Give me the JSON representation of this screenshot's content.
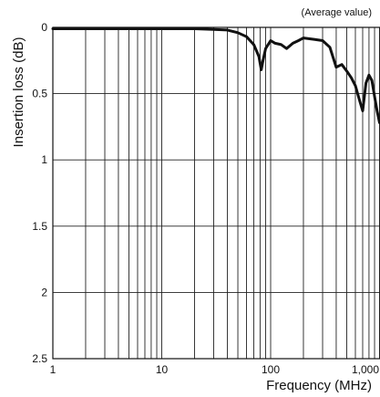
{
  "chart_data": {
    "type": "line",
    "title": "",
    "annotation": "(Average value)",
    "xlabel": "Frequency (MHz)",
    "ylabel": "Insertion loss (dB)",
    "x_scale": "log",
    "xlim": [
      1,
      1000
    ],
    "ylim": [
      0,
      2.5
    ],
    "y_inverted": true,
    "grid": true,
    "x_ticks": [
      {
        "value": 1,
        "label": "1"
      },
      {
        "value": 10,
        "label": "10"
      },
      {
        "value": 100,
        "label": "100"
      },
      {
        "value": 1000,
        "label": "1,000"
      }
    ],
    "y_ticks": [
      {
        "value": 0,
        "label": "0"
      },
      {
        "value": 0.5,
        "label": "0.5"
      },
      {
        "value": 1,
        "label": "1"
      },
      {
        "value": 1.5,
        "label": "1.5"
      },
      {
        "value": 2,
        "label": "2"
      },
      {
        "value": 2.5,
        "label": "2.5"
      }
    ],
    "series": [
      {
        "x": [
          1,
          3,
          10,
          20,
          30,
          40,
          50,
          60,
          70,
          78,
          82,
          85,
          90,
          100,
          110,
          125,
          140,
          160,
          180,
          200,
          250,
          300,
          350,
          400,
          450,
          500,
          550,
          600,
          650,
          700,
          750,
          800,
          850,
          900,
          950,
          1000
        ],
        "y": [
          0.01,
          0.01,
          0.01,
          0.01,
          0.015,
          0.02,
          0.04,
          0.07,
          0.13,
          0.22,
          0.32,
          0.25,
          0.16,
          0.1,
          0.12,
          0.13,
          0.16,
          0.12,
          0.1,
          0.08,
          0.09,
          0.1,
          0.15,
          0.3,
          0.28,
          0.33,
          0.38,
          0.44,
          0.54,
          0.63,
          0.42,
          0.36,
          0.4,
          0.52,
          0.63,
          0.72
        ]
      }
    ]
  }
}
